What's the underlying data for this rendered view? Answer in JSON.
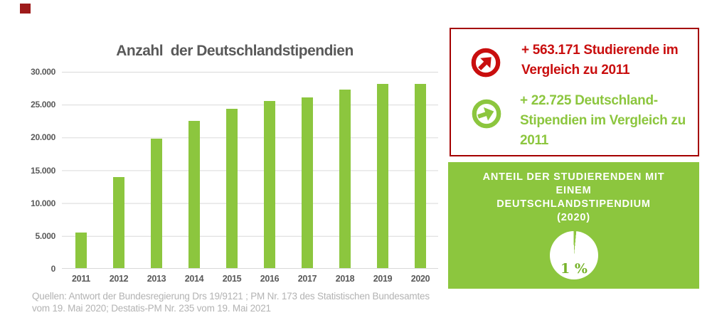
{
  "chart_data": [
    {
      "type": "bar",
      "title": "Anzahl  der Deutschlandstipendien",
      "categories": [
        "2011",
        "2012",
        "2013",
        "2014",
        "2015",
        "2016",
        "2017",
        "2018",
        "2019",
        "2020"
      ],
      "values": [
        5400,
        13900,
        19700,
        22450,
        24300,
        25500,
        25950,
        27150,
        28100,
        28100
      ],
      "xlabel": "",
      "ylabel": "",
      "ylim": [
        0,
        30000
      ],
      "ytick_step": 5000,
      "ytick_labels": [
        "0",
        "5.000",
        "10.000",
        "15.000",
        "20.000",
        "25.000",
        "30.000"
      ],
      "bar_color": "#8CC63E",
      "grid": true,
      "legend": false
    },
    {
      "type": "pie",
      "title": "ANTEIL DER STUDIERENDEN MIT EINEM DEUTSCHLANDSTIPENDIUM (2020)",
      "title_lines": [
        "ANTEIL DER STUDIERENDEN MIT",
        "EINEM",
        "DEUTSCHLANDSTIPENDIUM",
        "(2020)"
      ],
      "slices": [
        {
          "value": 1,
          "color": "#8CC63E"
        },
        {
          "value": 99,
          "color": "#FFFFFF"
        }
      ],
      "value_label": "1 %",
      "legend": false
    }
  ],
  "info_box": {
    "items": [
      {
        "icon": "arrow-up-right-circle-icon",
        "color": "#C90E0E",
        "text": "+ 563.171 Studierende im Vergleich zu 2011",
        "lines": [
          "+ 563.171 Studierende im",
          "Vergleich zu 2011"
        ]
      },
      {
        "icon": "arrow-right-circle-icon",
        "color": "#8CC63E",
        "text": "+ 22.725 Deutschland-Stipendien im Vergleich zu 2011",
        "lines": [
          "+ 22.725 Deutschland-",
          "Stipendien im Vergleich zu",
          "2011"
        ]
      }
    ]
  },
  "source_note": {
    "lines": [
      "Quellen: Antwort der Bundesregierung Drs 19/9121 ; PM Nr. 173 des Statistischen Bundesamtes",
      "vom 19. Mai 2020; Destatis-PM Nr. 235 vom 19. Mai 2021"
    ]
  },
  "colors": {
    "bar_green": "#8CC63E",
    "red_text": "#C90E0E",
    "red_border": "#A40000",
    "title_gray": "#595959",
    "source_gray": "#B3B3B3",
    "gridline_gray": "#D9D9D9",
    "corner_marker_maroon": "#9E1B1B",
    "pie_label_green": "#77B32B"
  }
}
